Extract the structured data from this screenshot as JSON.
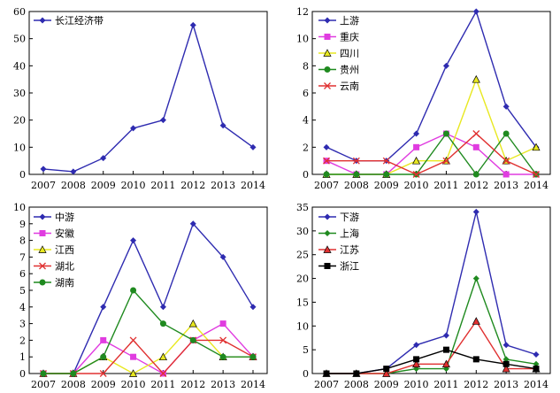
{
  "chart_data": [
    {
      "type": "line",
      "x": [
        "2007",
        "2008",
        "2009",
        "2010",
        "2011",
        "2012",
        "2013",
        "2014"
      ],
      "ylim": [
        0,
        60
      ],
      "yticks": [
        0,
        10,
        20,
        30,
        40,
        50,
        60
      ],
      "series": [
        {
          "name": "长江经济带",
          "color": "#2e2bb0",
          "marker": "diamond",
          "values": [
            2,
            1,
            6,
            17,
            20,
            55,
            18,
            10
          ]
        }
      ]
    },
    {
      "type": "line",
      "x": [
        "2007",
        "2008",
        "2009",
        "2010",
        "2011",
        "2012",
        "2013",
        "2014"
      ],
      "ylim": [
        0,
        12
      ],
      "yticks": [
        0,
        2,
        4,
        6,
        8,
        10,
        12
      ],
      "series": [
        {
          "name": "上游",
          "color": "#2e2bb0",
          "marker": "diamond",
          "values": [
            2,
            1,
            1,
            3,
            8,
            12,
            5,
            2
          ]
        },
        {
          "name": "重庆",
          "color": "#e03ce0",
          "marker": "square",
          "values": [
            1,
            0,
            0,
            2,
            3,
            2,
            0,
            0
          ]
        },
        {
          "name": "四川",
          "color": "#e8e820",
          "marker": "triangle",
          "values": [
            0,
            0,
            0,
            1,
            1,
            7,
            1,
            2
          ]
        },
        {
          "name": "贵州",
          "color": "#1f8a1f",
          "marker": "circle",
          "values": [
            0,
            0,
            0,
            0,
            3,
            0,
            3,
            0
          ]
        },
        {
          "name": "云南",
          "color": "#e03030",
          "marker": "x",
          "values": [
            1,
            1,
            1,
            0,
            1,
            3,
            1,
            0
          ]
        }
      ]
    },
    {
      "type": "line",
      "x": [
        "2007",
        "2008",
        "2009",
        "2010",
        "2011",
        "2012",
        "2013",
        "2014"
      ],
      "ylim": [
        0,
        10
      ],
      "yticks": [
        0,
        1,
        2,
        3,
        4,
        5,
        6,
        7,
        8,
        9,
        10
      ],
      "series": [
        {
          "name": "中游",
          "color": "#2e2bb0",
          "marker": "diamond",
          "values": [
            0,
            0,
            4,
            8,
            4,
            9,
            7,
            4
          ]
        },
        {
          "name": "安徽",
          "color": "#e03ce0",
          "marker": "square",
          "values": [
            0,
            0,
            2,
            1,
            0,
            2,
            3,
            1
          ]
        },
        {
          "name": "江西",
          "color": "#e8e820",
          "marker": "triangle",
          "values": [
            0,
            0,
            1,
            0,
            1,
            3,
            1,
            1
          ]
        },
        {
          "name": "湖北",
          "color": "#e03030",
          "marker": "x",
          "values": [
            0,
            0,
            0,
            2,
            0,
            2,
            2,
            1
          ]
        },
        {
          "name": "湖南",
          "color": "#1f8a1f",
          "marker": "circle",
          "values": [
            0,
            0,
            1,
            5,
            3,
            2,
            1,
            1
          ]
        }
      ]
    },
    {
      "type": "line",
      "x": [
        "2007",
        "2008",
        "2009",
        "2010",
        "2011",
        "2012",
        "2013",
        "2014"
      ],
      "ylim": [
        0,
        35
      ],
      "yticks": [
        0,
        5,
        10,
        15,
        20,
        25,
        30,
        35
      ],
      "series": [
        {
          "name": "下游",
          "color": "#2e2bb0",
          "marker": "diamond",
          "values": [
            0,
            0,
            1,
            6,
            8,
            34,
            6,
            4
          ]
        },
        {
          "name": "上海",
          "color": "#1f8a1f",
          "marker": "diamond",
          "values": [
            0,
            0,
            0,
            1,
            1,
            20,
            3,
            2
          ]
        },
        {
          "name": "江苏",
          "color": "#e03030",
          "marker": "triangle",
          "values": [
            0,
            0,
            0,
            2,
            2,
            11,
            1,
            1
          ]
        },
        {
          "name": "浙江",
          "color": "#000000",
          "marker": "square",
          "values": [
            0,
            0,
            1,
            3,
            5,
            3,
            2,
            1
          ]
        }
      ]
    }
  ]
}
